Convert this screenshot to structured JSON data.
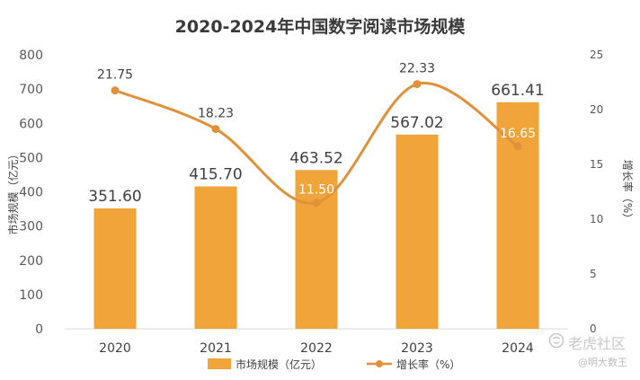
{
  "chart_data": {
    "type": "bar",
    "title": "2020-2024年中国数字阅读市场规模",
    "categories": [
      "2020",
      "2021",
      "2022",
      "2023",
      "2024"
    ],
    "series": [
      {
        "name": "市场规模（亿元）",
        "type": "bar",
        "axis": "left",
        "values": [
          351.6,
          415.7,
          463.52,
          567.02,
          661.41
        ],
        "labels": [
          "351.60",
          "415.70",
          "463.52",
          "567.02",
          "661.41"
        ],
        "color": "#f0a43a"
      },
      {
        "name": "增长率（%）",
        "type": "line",
        "axis": "right",
        "values": [
          21.75,
          18.23,
          11.5,
          22.33,
          16.65
        ],
        "labels": [
          "21.75",
          "18.23",
          "11.50",
          "22.33",
          "16.65"
        ],
        "color": "#e0913a"
      }
    ],
    "ylabel": "市场规模（亿元）",
    "ylabel_right": "增长率（%）",
    "ylim": [
      0,
      800
    ],
    "yticks": [
      "0",
      "100",
      "200",
      "300",
      "400",
      "500",
      "600",
      "700",
      "800"
    ],
    "ylim_right": [
      0,
      25
    ],
    "yticks_right": [
      "0",
      "5",
      "10",
      "15",
      "20",
      "25"
    ],
    "legend": "bottom",
    "grid": false
  },
  "watermark": {
    "brand": "老虎社区",
    "user": "@明大数王",
    "icon": "tiger-logo-icon"
  }
}
